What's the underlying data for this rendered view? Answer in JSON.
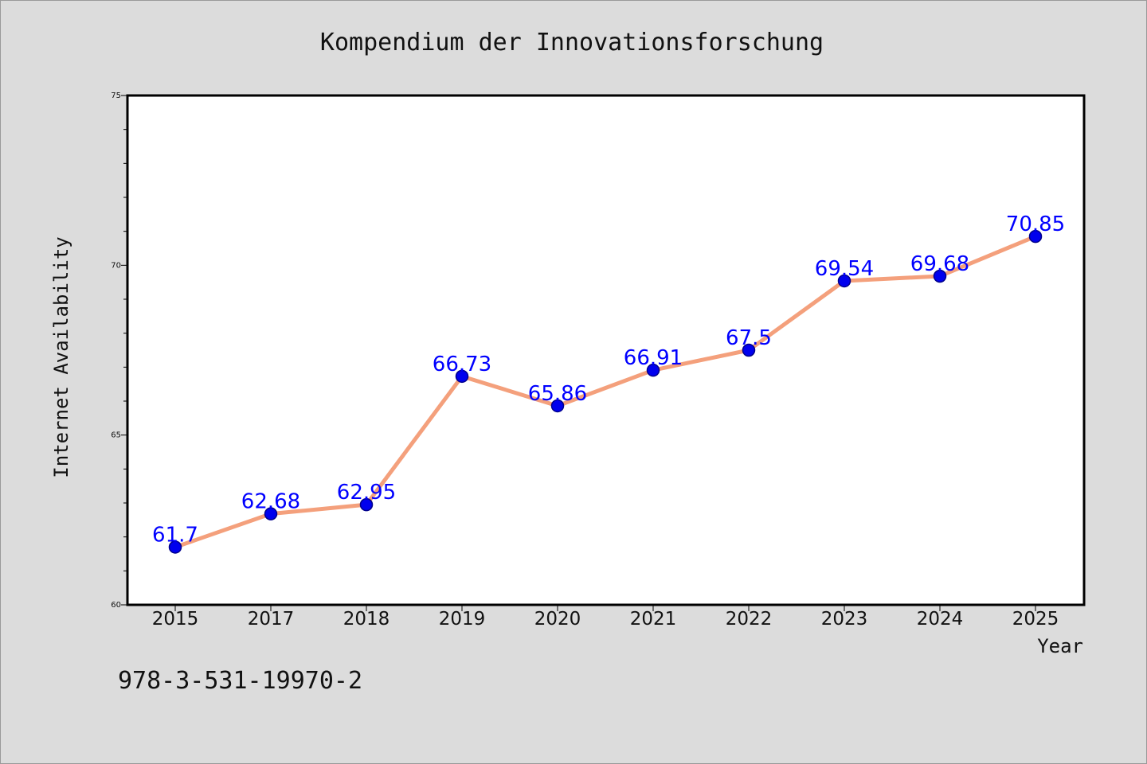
{
  "chart_data": {
    "type": "line",
    "title": "Kompendium der Innovationsforschung",
    "xlabel": "Year",
    "ylabel": "Internet Availability",
    "categories": [
      "2015",
      "2017",
      "2018",
      "2019",
      "2020",
      "2021",
      "2022",
      "2023",
      "2024",
      "2025"
    ],
    "series": [
      {
        "values": [
          61.7,
          62.68,
          62.95,
          66.73,
          65.86,
          66.91,
          67.5,
          69.54,
          69.68,
          70.85
        ],
        "data_labels": [
          "61.7",
          "62.68",
          "62.95",
          "66.73",
          "65.86",
          "66.91",
          "67.5",
          "69.54",
          "69.68",
          "70.85"
        ]
      }
    ],
    "ylim": [
      60,
      75
    ],
    "yticks": [
      "60",
      "65",
      "70",
      "75"
    ],
    "grid": false,
    "legend": "none",
    "colors": {
      "line": "#f4a07c",
      "marker": "#0000ee",
      "marker_edge": "#00008b",
      "data_label": "#0000ff",
      "plot_background": "#ffffff",
      "page_background": "#dcdcdc"
    }
  },
  "footer": {
    "isbn": "978-3-531-19970-2"
  }
}
